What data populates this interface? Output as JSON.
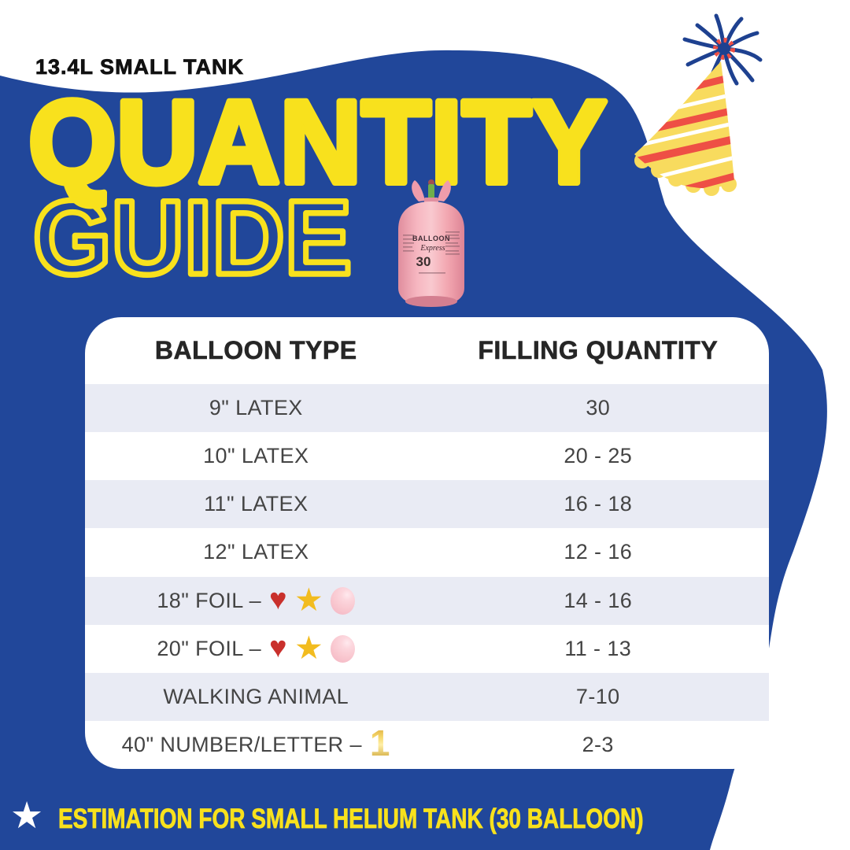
{
  "colors": {
    "blue": "#21479a",
    "yellow": "#f8e11d",
    "row_stripe": "#e9ebf4",
    "header_text": "#262626",
    "row_text": "#444444",
    "heart_red": "#c9302c",
    "star_gold": "#f2bc1f",
    "balloon_pink": "#f9c8d0",
    "hat_yellow": "#f8db5e",
    "hat_red": "#ee4f45",
    "hat_blue": "#1e4190",
    "tank_pink": "#f2a6b0",
    "white": "#ffffff",
    "tagline_black": "#111111"
  },
  "header": {
    "tagline": "13.4L SMALL TANK",
    "title_line1": "QUANTITY",
    "title_line2": "GUIDE"
  },
  "decor": {
    "tank": {
      "brand": "BALLOON",
      "script": "Express",
      "volume": "30"
    }
  },
  "table": {
    "columns": [
      "BALLOON TYPE",
      "FILLING QUANTITY"
    ],
    "rows": [
      {
        "type": "9\" LATEX",
        "qty": "30",
        "icons": []
      },
      {
        "type": "10\" LATEX",
        "qty": "20 - 25",
        "icons": []
      },
      {
        "type": "11\" LATEX",
        "qty": "16 - 18",
        "icons": []
      },
      {
        "type": "12\" LATEX",
        "qty": "12 - 16",
        "icons": []
      },
      {
        "type": "18\" FOIL –",
        "qty": "14 - 16",
        "icons": [
          "heart",
          "star",
          "balloon"
        ]
      },
      {
        "type": "20\" FOIL –",
        "qty": "11 - 13",
        "icons": [
          "heart",
          "star",
          "balloon"
        ]
      },
      {
        "type": "WALKING ANIMAL",
        "qty": "7-10",
        "icons": []
      },
      {
        "type": "40\" NUMBER/LETTER –",
        "qty": "2-3",
        "icons": [
          "number-one"
        ]
      }
    ]
  },
  "footer": {
    "note": "ESTIMATION FOR SMALL HELIUM TANK (30 BALLOON)",
    "star": "★"
  },
  "icons": {
    "glyphs": {
      "heart": "♥",
      "star": "★",
      "balloon": "",
      "number-one": "1"
    }
  }
}
